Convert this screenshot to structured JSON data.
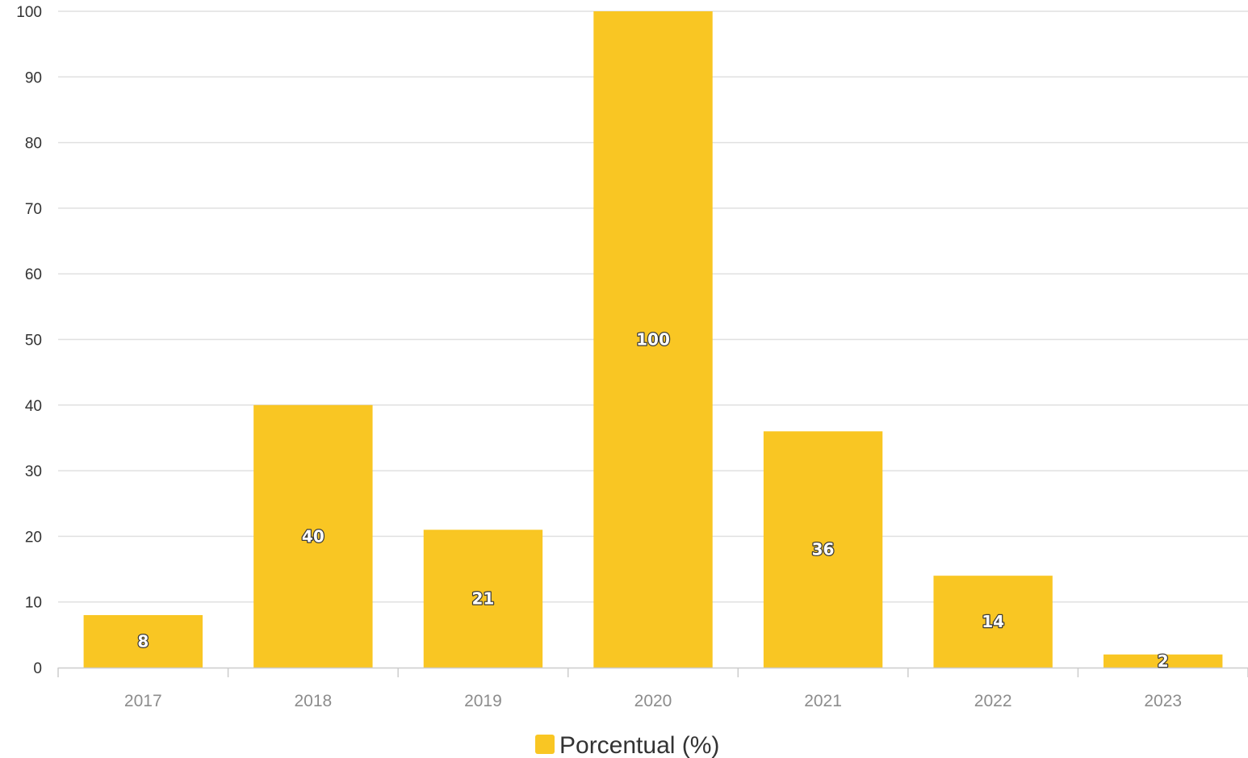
{
  "chart_data": {
    "type": "bar",
    "categories": [
      "2017",
      "2018",
      "2019",
      "2020",
      "2021",
      "2022",
      "2023"
    ],
    "series": [
      {
        "name": "Porcentual (%)",
        "values": [
          8,
          40,
          21,
          100,
          36,
          14,
          2
        ],
        "color": "#F9C623"
      }
    ],
    "yticks": [
      0,
      10,
      20,
      30,
      40,
      50,
      60,
      70,
      80,
      90,
      100
    ],
    "ylim": [
      0,
      100
    ],
    "grid": true,
    "data_labels": true,
    "legend_position": "bottom-center",
    "colors": {
      "bar": "#F9C623",
      "grid": "#e0e0e0",
      "axis": "#cccccc"
    }
  }
}
